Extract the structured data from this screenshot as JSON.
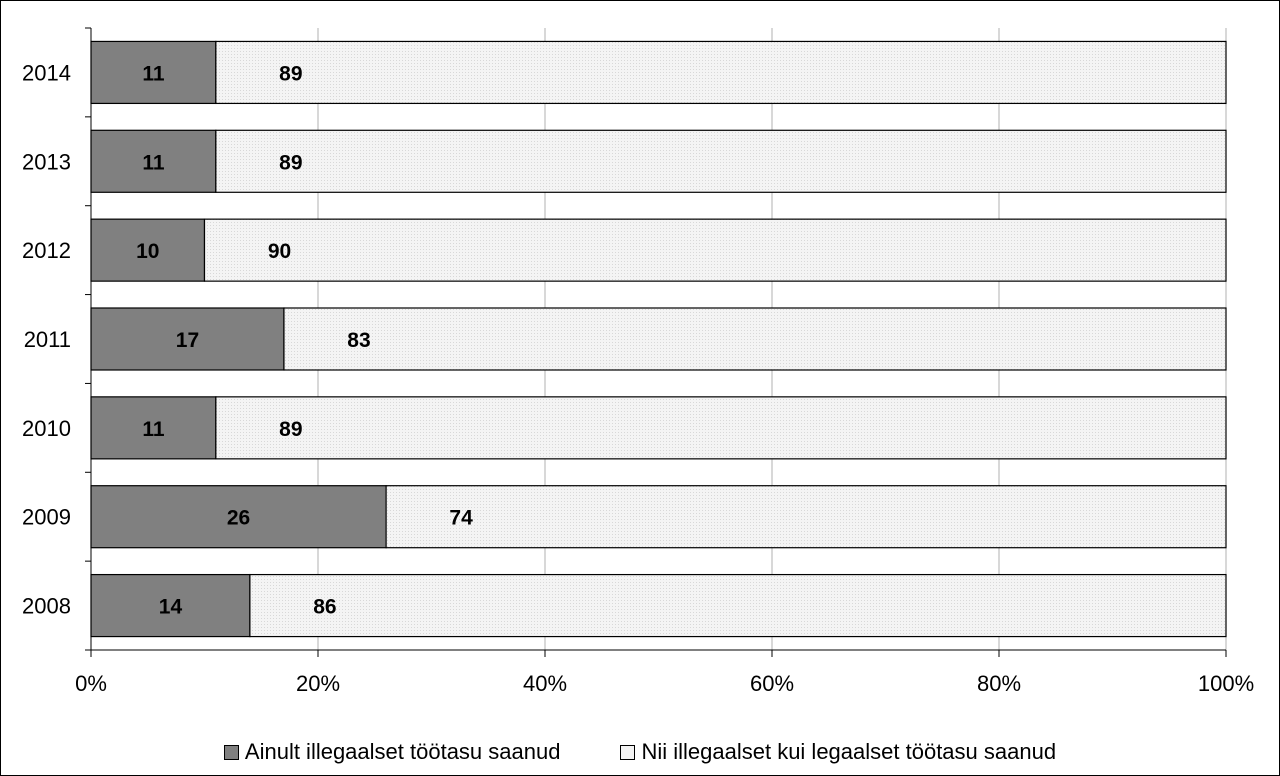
{
  "chart_data": {
    "type": "bar",
    "orientation": "horizontal",
    "stacked": true,
    "percent": true,
    "categories": [
      "2014",
      "2013",
      "2012",
      "2011",
      "2010",
      "2009",
      "2008"
    ],
    "series": [
      {
        "name": "Ainult illegaalset töötasu saanud",
        "color": "#808080",
        "values": [
          11,
          11,
          10,
          17,
          11,
          26,
          14
        ]
      },
      {
        "name": "Nii illegaalset kui legaalset töötasu saanud",
        "color": "#f2f2f2",
        "values": [
          89,
          89,
          90,
          83,
          89,
          74,
          86
        ]
      }
    ],
    "x_ticks": [
      "0%",
      "20%",
      "40%",
      "60%",
      "80%",
      "100%"
    ],
    "xlim": [
      0,
      100
    ],
    "grid": "vertical",
    "legend_position": "bottom"
  }
}
